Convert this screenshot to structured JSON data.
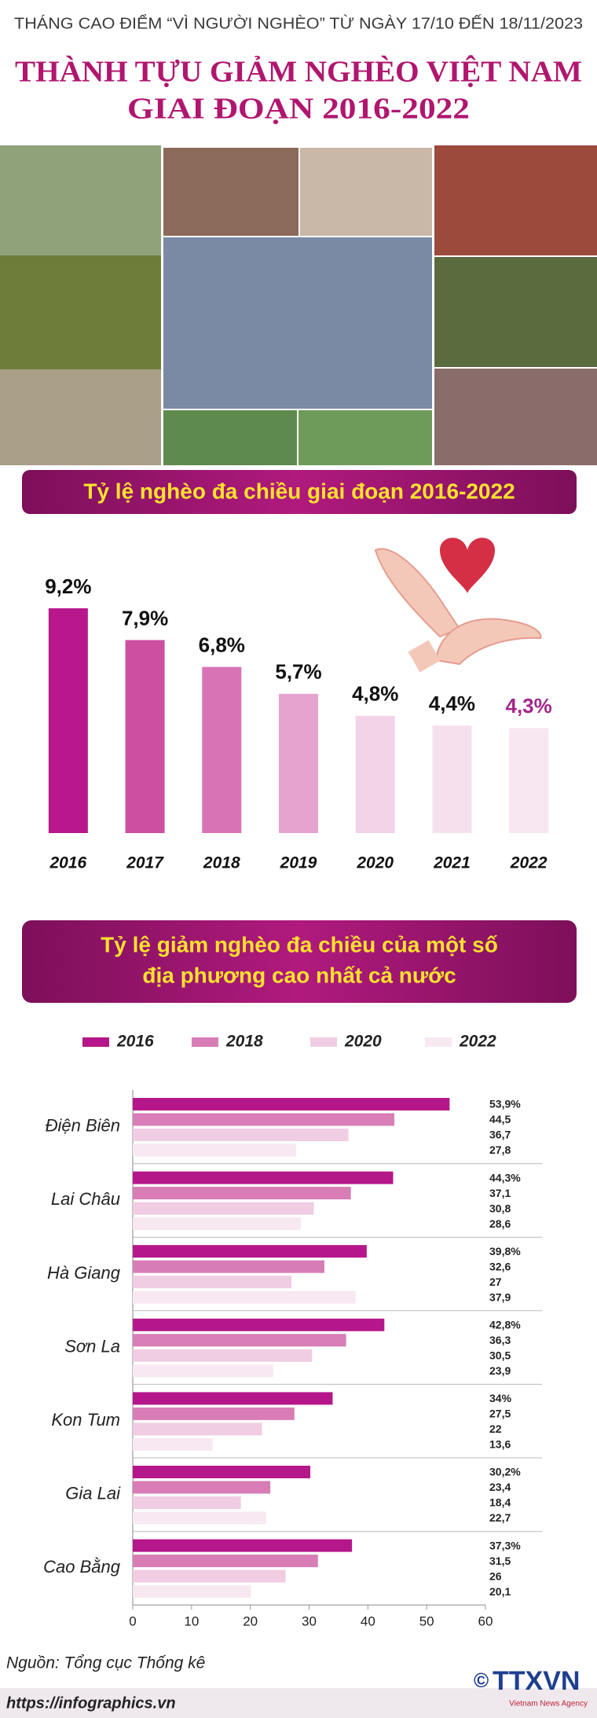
{
  "header": {
    "top_line": "THÁNG CAO ĐIỂM “VÌ NGƯỜI NGHÈO” TỪ NGÀY 17/10 ĐẾN 18/11/2023",
    "title_line1": "THÀNH TỰU GIẢM NGHÈO VIỆT NAM",
    "title_line2": "GIAI ĐOẠN 2016-2022"
  },
  "chart_data": [
    {
      "type": "bar",
      "title": "Tỷ lệ nghèo đa chiều giai đoạn 2016-2022",
      "categories": [
        "2016",
        "2017",
        "2018",
        "2019",
        "2020",
        "2021",
        "2022"
      ],
      "values": [
        9.2,
        7.9,
        6.8,
        5.7,
        4.8,
        4.4,
        4.3
      ],
      "value_labels": [
        "9,2%",
        "7,9%",
        "6,8%",
        "5,7%",
        "4,8%",
        "4,4%",
        "4,3%"
      ],
      "colors": [
        "#b8188b",
        "#cc4fa2",
        "#d874b5",
        "#e6a3cf",
        "#f3d3e7",
        "#f6e0ee",
        "#f8e7f1"
      ],
      "value_label_colors": [
        "#111111",
        "#111111",
        "#111111",
        "#111111",
        "#111111",
        "#111111",
        "#a3268a"
      ]
    },
    {
      "type": "bar",
      "orientation": "horizontal",
      "title": [
        "Tỷ lệ giảm nghèo đa chiều của một số",
        "địa phương cao nhất cả nước"
      ],
      "categories": [
        "Điện Biên",
        "Lai Châu",
        "Hà Giang",
        "Sơn La",
        "Kon Tum",
        "Gia Lai",
        "Cao Bằng"
      ],
      "series": [
        {
          "name": "2016",
          "color": "#b5178a",
          "values": [
            53.9,
            44.3,
            39.8,
            42.8,
            34,
            30.2,
            37.3
          ],
          "value_labels": [
            "53,9%",
            "44,3%",
            "39,8%",
            "42,8%",
            "34%",
            "30,2%",
            "37,3%"
          ]
        },
        {
          "name": "2018",
          "color": "#d87db6",
          "values": [
            44.5,
            37.1,
            32.6,
            36.3,
            27.5,
            23.4,
            31.5
          ],
          "value_labels": [
            "44,5",
            "37,1",
            "32,6",
            "36,3",
            "27,5",
            "23,4",
            "31,5"
          ]
        },
        {
          "name": "2020",
          "color": "#f0cde2",
          "values": [
            36.7,
            30.8,
            27,
            30.5,
            22,
            18.4,
            26
          ],
          "value_labels": [
            "36,7",
            "30,8",
            "27",
            "30,5",
            "22",
            "18,4",
            "26"
          ]
        },
        {
          "name": "2022",
          "color": "#f8e8f1",
          "values": [
            27.8,
            28.6,
            37.9,
            23.9,
            13.6,
            22.7,
            20.1
          ],
          "value_labels": [
            "27,8",
            "28,6",
            "37,9",
            "23,9",
            "13,6",
            "22,7",
            "20,1"
          ]
        }
      ],
      "xlim": [
        0,
        60
      ],
      "xticks": [
        0,
        10,
        20,
        30,
        40,
        50,
        60
      ]
    }
  ],
  "footer": {
    "source": "Nguồn: Tổng cục Thống kê",
    "url": "https://infographics.vn",
    "logo": "TTXVN",
    "logo_symbol": "©",
    "agency": "Vietnam News Agency"
  }
}
